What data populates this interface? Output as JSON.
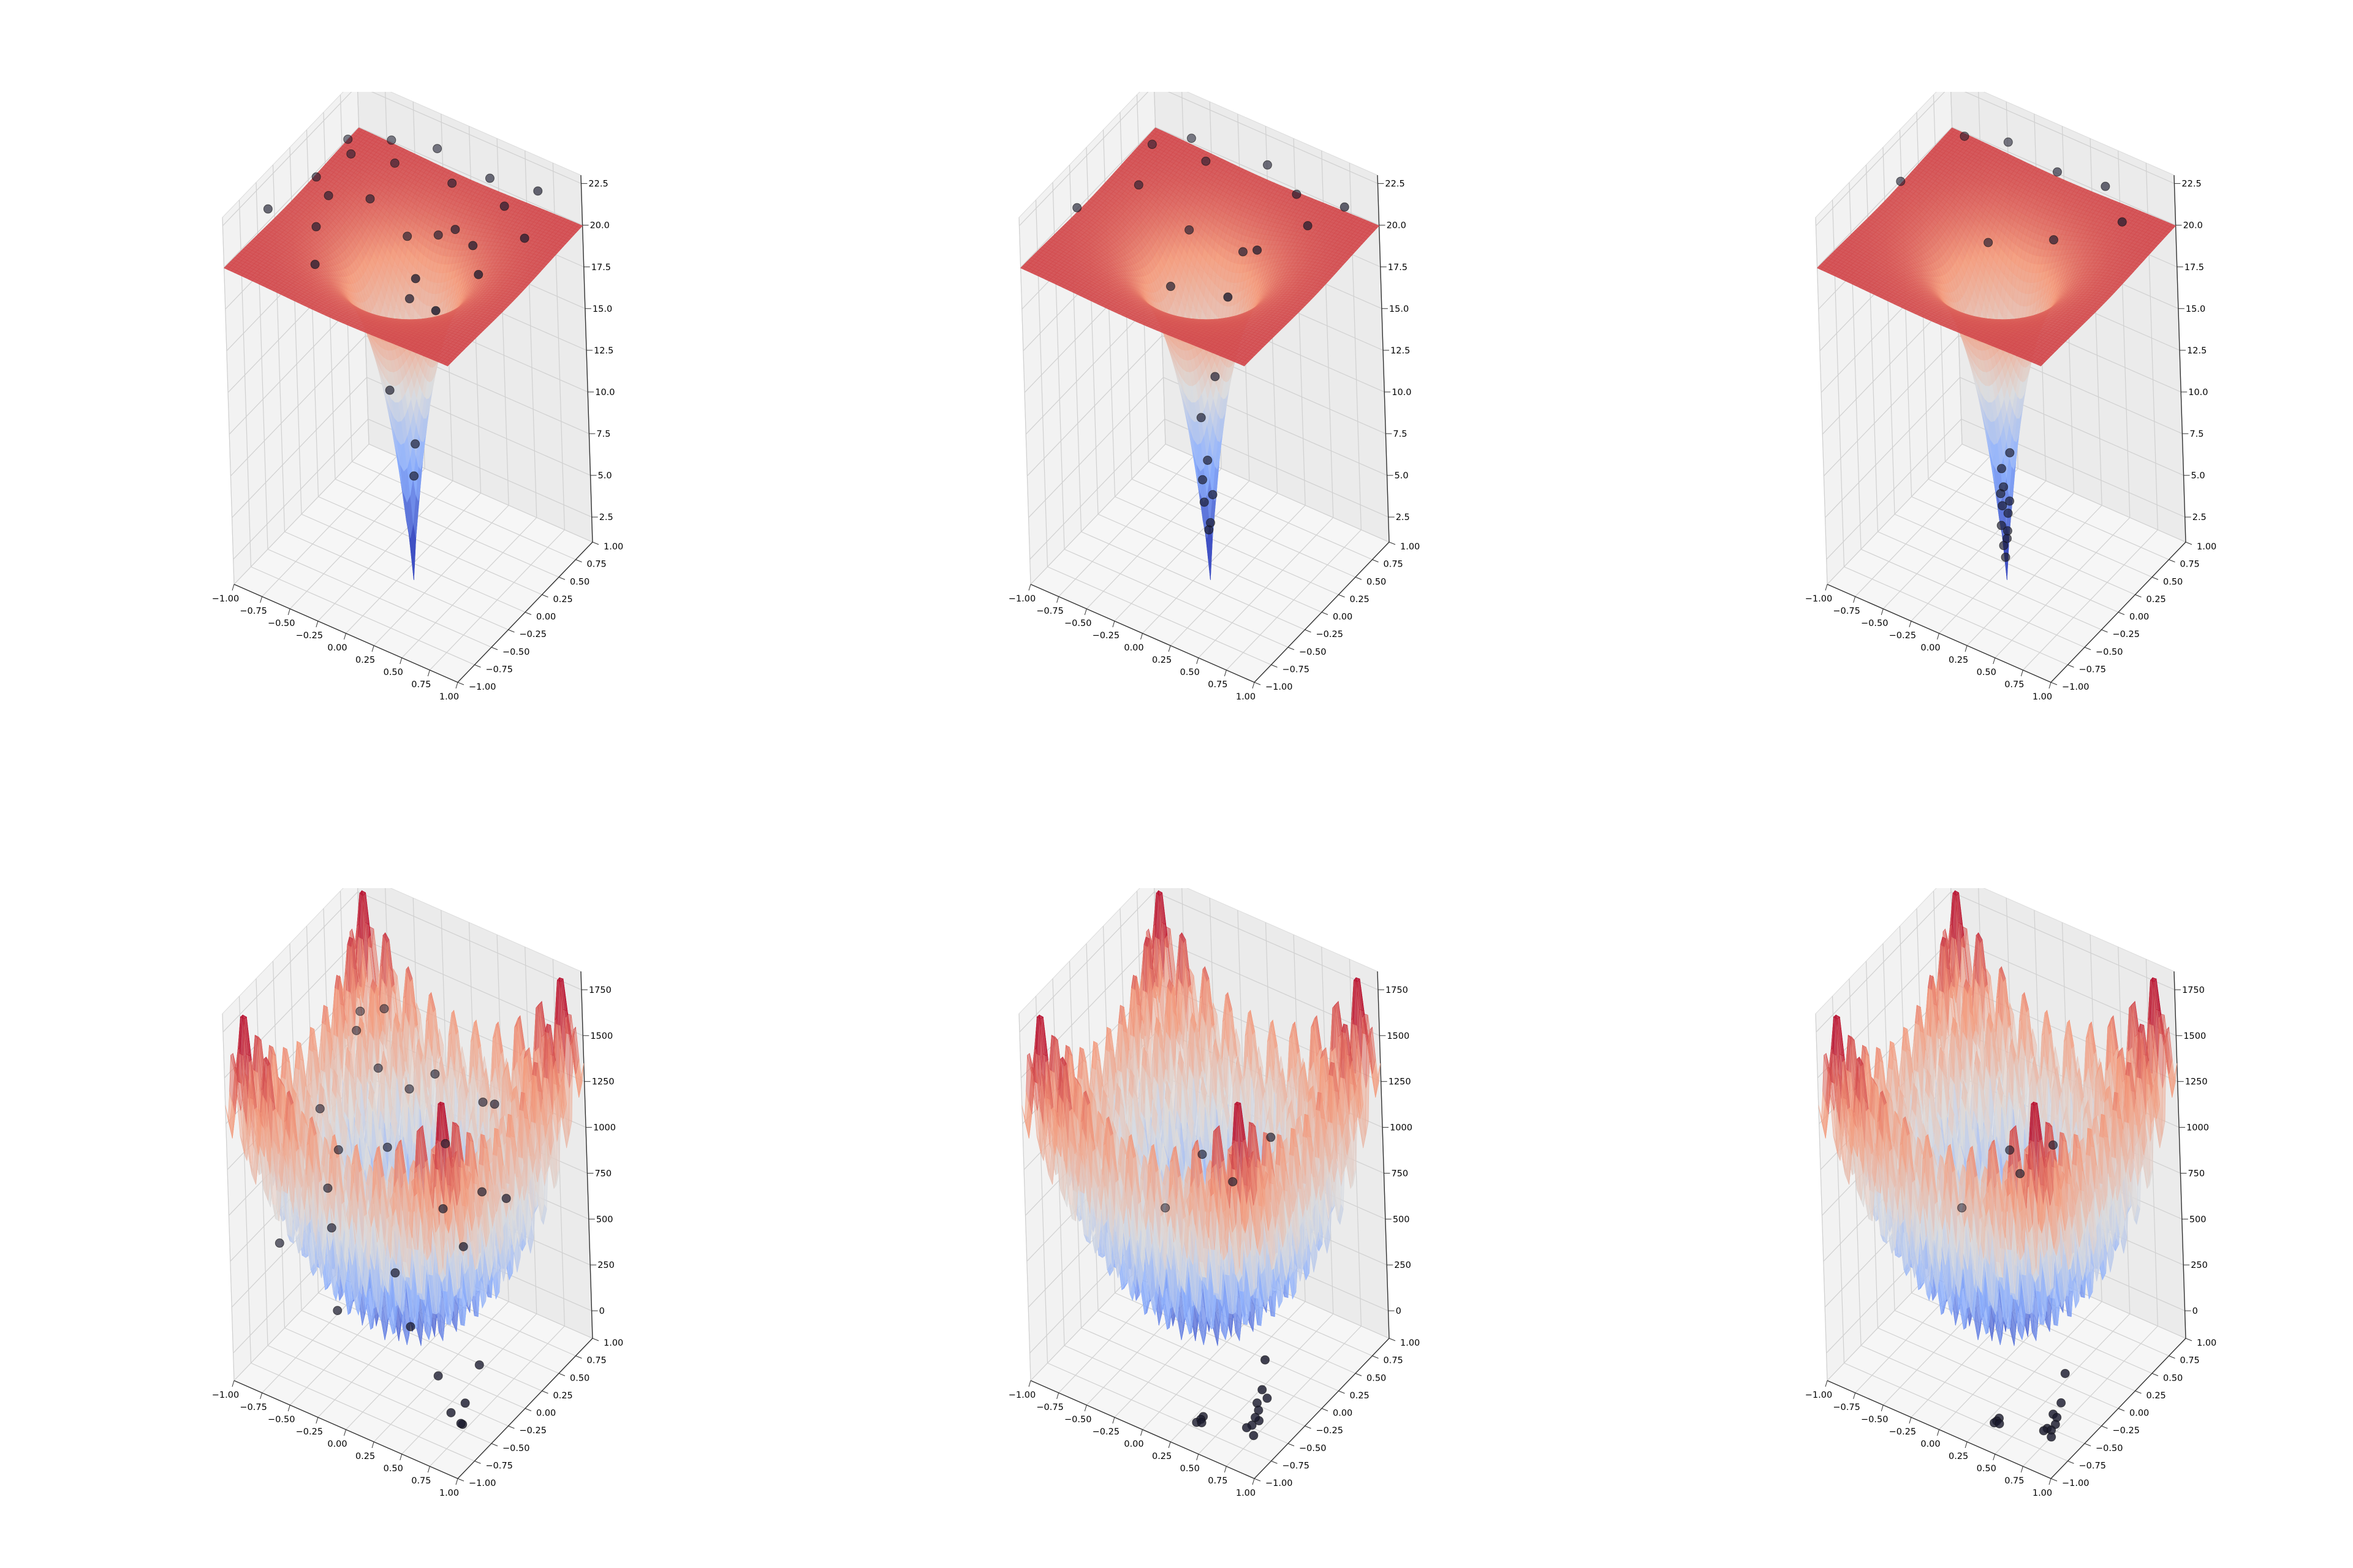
{
  "chart_data": [
    {
      "type": "surface3d",
      "row": 0,
      "col": 0,
      "surface": "ackley",
      "colormap": "coolwarm",
      "x_ticks": [
        "−1.00",
        "−0.75",
        "−0.50",
        "−0.25",
        "0.00",
        "0.25",
        "0.50",
        "0.75",
        "1.00"
      ],
      "y_ticks": [
        "−1.00",
        "−0.75",
        "−0.50",
        "−0.25",
        "0.00",
        "0.25",
        "0.50",
        "0.75",
        "1.00"
      ],
      "z_ticks": [
        "2.5",
        "5.0",
        "7.5",
        "10.0",
        "12.5",
        "15.0",
        "17.5",
        "20.0",
        "22.5"
      ],
      "xlim": [
        -1,
        1
      ],
      "ylim": [
        -1,
        1
      ],
      "zlim": [
        1,
        23
      ],
      "z_tick_values": [
        2.5,
        5,
        7.5,
        10,
        12.5,
        15,
        17.5,
        20,
        22.5
      ],
      "grid": true,
      "points": [
        [
          -0.85,
          0.6,
          21.4
        ],
        [
          -0.7,
          0.4,
          21.8
        ],
        [
          -0.55,
          0.75,
          21.6
        ],
        [
          -0.4,
          0.55,
          21.5
        ],
        [
          -0.2,
          0.85,
          21.7
        ],
        [
          0.05,
          0.65,
          21.2
        ],
        [
          0.3,
          0.8,
          21.6
        ],
        [
          0.55,
          0.6,
          21.5
        ],
        [
          0.7,
          0.85,
          21.8
        ],
        [
          0.85,
          0.4,
          21.3
        ],
        [
          -0.8,
          0.05,
          21.6
        ],
        [
          -0.6,
          -0.1,
          21.7
        ],
        [
          -0.35,
          0.1,
          21.4
        ],
        [
          0.35,
          0.2,
          21.2
        ],
        [
          0.6,
          0.05,
          21.6
        ],
        [
          0.8,
          -0.2,
          21.5
        ],
        [
          -0.9,
          -0.5,
          21.7
        ],
        [
          -0.5,
          -0.45,
          21.6
        ],
        [
          0.45,
          -0.55,
          21.7
        ],
        [
          0.1,
          0.35,
          19.5
        ],
        [
          -0.15,
          0.3,
          18.9
        ],
        [
          0.2,
          -0.25,
          18.5
        ],
        [
          -0.1,
          -0.1,
          11.5
        ],
        [
          0.02,
          0.05,
          8.0
        ],
        [
          0.05,
          -0.03,
          6.5
        ],
        [
          -0.3,
          -0.8,
          21.4
        ],
        [
          0.75,
          -0.75,
          21.5
        ]
      ]
    },
    {
      "type": "surface3d",
      "row": 0,
      "col": 1,
      "surface": "ackley",
      "colormap": "coolwarm",
      "x_ticks": [
        "−1.00",
        "−0.75",
        "−0.50",
        "−0.25",
        "0.00",
        "0.25",
        "0.50",
        "0.75",
        "1.00"
      ],
      "y_ticks": [
        "−1.00",
        "−0.75",
        "−0.50",
        "−0.25",
        "0.00",
        "0.25",
        "0.50",
        "0.75",
        "1.00"
      ],
      "z_ticks": [
        "2.5",
        "5.0",
        "7.5",
        "10.0",
        "12.5",
        "15.0",
        "17.5",
        "20.0",
        "22.5"
      ],
      "xlim": [
        -1,
        1
      ],
      "ylim": [
        -1,
        1
      ],
      "zlim": [
        1,
        23
      ],
      "z_tick_values": [
        2.5,
        5,
        7.5,
        10,
        12.5,
        15,
        17.5,
        20,
        22.5
      ],
      "grid": true,
      "points": [
        [
          -0.75,
          0.55,
          21.6
        ],
        [
          -0.55,
          0.8,
          21.5
        ],
        [
          -0.3,
          0.6,
          21.7
        ],
        [
          0.1,
          0.85,
          21.6
        ],
        [
          0.45,
          0.7,
          21.5
        ],
        [
          0.7,
          0.45,
          21.4
        ],
        [
          0.85,
          0.75,
          21.7
        ],
        [
          -0.6,
          0.1,
          21.5
        ],
        [
          0.55,
          -0.05,
          21.6
        ],
        [
          -0.25,
          0.25,
          19.2
        ],
        [
          0.2,
          0.3,
          19.0
        ],
        [
          -0.15,
          -0.2,
          18.0
        ],
        [
          0.05,
          0.08,
          12.0
        ],
        [
          -0.05,
          0.02,
          9.5
        ],
        [
          0.04,
          -0.05,
          7.5
        ],
        [
          -0.03,
          -0.02,
          6.0
        ],
        [
          0.02,
          0.04,
          5.0
        ],
        [
          -0.04,
          0.01,
          4.5
        ],
        [
          0.03,
          -0.02,
          3.6
        ],
        [
          0.0,
          0.0,
          3.0
        ],
        [
          -0.85,
          -0.4,
          21.5
        ],
        [
          0.65,
          -0.65,
          21.6
        ]
      ]
    },
    {
      "type": "surface3d",
      "row": 0,
      "col": 2,
      "surface": "ackley",
      "colormap": "coolwarm",
      "x_ticks": [
        "−1.00",
        "−0.75",
        "−0.50",
        "−0.25",
        "0.00",
        "0.25",
        "0.50",
        "0.75",
        "1.00"
      ],
      "y_ticks": [
        "−1.00",
        "−0.75",
        "−0.50",
        "−0.25",
        "0.00",
        "0.25",
        "0.50",
        "0.75",
        "1.00"
      ],
      "z_ticks": [
        "2.5",
        "5.0",
        "7.5",
        "10.0",
        "12.5",
        "15.0",
        "17.5",
        "20.0",
        "22.5"
      ],
      "xlim": [
        -1,
        1
      ],
      "ylim": [
        -1,
        1
      ],
      "zlim": [
        1,
        23
      ],
      "z_tick_values": [
        2.5,
        5,
        7.5,
        10,
        12.5,
        15,
        17.5,
        20,
        22.5
      ],
      "grid": true,
      "points": [
        [
          -0.7,
          0.7,
          21.6
        ],
        [
          -0.4,
          0.85,
          21.5
        ],
        [
          0.1,
          0.75,
          21.6
        ],
        [
          0.5,
          0.8,
          21.7
        ],
        [
          0.8,
          0.55,
          21.5
        ],
        [
          -0.85,
          0.0,
          21.4
        ],
        [
          0.3,
          0.35,
          19.8
        ],
        [
          -0.2,
          0.2,
          18.8
        ],
        [
          0.03,
          0.05,
          7.5
        ],
        [
          -0.03,
          0.02,
          6.5
        ],
        [
          0.02,
          -0.04,
          5.8
        ],
        [
          -0.02,
          -0.02,
          5.2
        ],
        [
          0.04,
          0.01,
          4.8
        ],
        [
          -0.04,
          0.03,
          4.2
        ],
        [
          0.01,
          0.03,
          3.9
        ],
        [
          -0.01,
          -0.04,
          3.4
        ],
        [
          0.02,
          0.0,
          3.0
        ],
        [
          0.0,
          0.02,
          2.4
        ],
        [
          -0.02,
          0.0,
          2.0
        ],
        [
          0.0,
          -0.01,
          1.4
        ]
      ]
    },
    {
      "type": "surface3d",
      "row": 1,
      "col": 0,
      "surface": "rastrigin",
      "colormap": "coolwarm",
      "x_ticks": [
        "−1.00",
        "−0.75",
        "−0.50",
        "−0.25",
        "0.00",
        "0.25",
        "0.50",
        "0.75",
        "1.00"
      ],
      "y_ticks": [
        "−1.00",
        "−0.75",
        "−0.50",
        "−0.25",
        "0.00",
        "0.25",
        "0.50",
        "0.75",
        "1.00"
      ],
      "z_ticks": [
        "0",
        "250",
        "500",
        "750",
        "1000",
        "1250",
        "1500",
        "1750"
      ],
      "xlim": [
        -1,
        1
      ],
      "ylim": [
        -1,
        1
      ],
      "zlim": [
        -150,
        1850
      ],
      "z_tick_values": [
        0,
        250,
        500,
        750,
        1000,
        1250,
        1500,
        1750
      ],
      "grid": true,
      "points": [
        [
          -0.95,
          0.9,
          1150
        ],
        [
          -0.8,
          0.6,
          1200
        ],
        [
          -0.9,
          0.2,
          900
        ],
        [
          -0.7,
          0.85,
          1250
        ],
        [
          -0.55,
          0.5,
          1100
        ],
        [
          -0.4,
          0.7,
          950
        ],
        [
          -0.6,
          -0.2,
          700
        ],
        [
          -0.3,
          0.2,
          850
        ],
        [
          -0.1,
          0.6,
          1150
        ],
        [
          0.1,
          0.4,
          900
        ],
        [
          0.25,
          0.1,
          700
        ],
        [
          0.4,
          0.65,
          1100
        ],
        [
          -0.8,
          -0.6,
          500
        ],
        [
          -0.45,
          -0.4,
          600
        ],
        [
          0.05,
          -0.3,
          450
        ],
        [
          0.3,
          -0.5,
          300
        ],
        [
          0.55,
          -0.1,
          650
        ],
        [
          0.7,
          0.3,
          800
        ],
        [
          0.85,
          -0.4,
          200
        ],
        [
          0.9,
          -0.7,
          120
        ],
        [
          0.95,
          -0.85,
          80
        ],
        [
          0.8,
          -0.75,
          60
        ],
        [
          0.6,
          -0.6,
          150
        ],
        [
          -0.2,
          -0.75,
          350
        ],
        [
          0.2,
          0.8,
          1000
        ],
        [
          -0.65,
          0.05,
          800
        ],
        [
          0.45,
          0.35,
          750
        ],
        [
          0.92,
          -0.78,
          40
        ]
      ]
    },
    {
      "type": "surface3d",
      "row": 1,
      "col": 1,
      "surface": "rastrigin",
      "colormap": "coolwarm",
      "x_ticks": [
        "−1.00",
        "−0.75",
        "−0.50",
        "−0.25",
        "0.00",
        "0.25",
        "0.50",
        "0.75",
        "1.00"
      ],
      "y_ticks": [
        "−1.00",
        "−0.75",
        "−0.50",
        "−0.25",
        "0.00",
        "0.25",
        "0.50",
        "0.75",
        "1.00"
      ],
      "z_ticks": [
        "0",
        "250",
        "500",
        "750",
        "1000",
        "1250",
        "1500",
        "1750"
      ],
      "xlim": [
        -1,
        1
      ],
      "ylim": [
        -1,
        1
      ],
      "zlim": [
        -150,
        1850
      ],
      "z_tick_values": [
        0,
        250,
        500,
        750,
        1000,
        1250,
        1500,
        1750
      ],
      "grid": true,
      "points": [
        [
          -0.98,
          0.98,
          40
        ],
        [
          -0.2,
          0.3,
          800
        ],
        [
          0.1,
          0.25,
          750
        ],
        [
          0.3,
          0.5,
          950
        ],
        [
          0.92,
          -0.78,
          60
        ],
        [
          0.9,
          -0.75,
          100
        ],
        [
          0.88,
          -0.82,
          40
        ],
        [
          0.95,
          -0.7,
          160
        ],
        [
          0.85,
          -0.85,
          30
        ],
        [
          0.93,
          -0.88,
          20
        ],
        [
          0.97,
          -0.8,
          250
        ],
        [
          0.98,
          -0.76,
          400
        ],
        [
          0.87,
          -0.72,
          120
        ],
        [
          0.5,
          -0.95,
          20
        ],
        [
          0.48,
          -0.98,
          10
        ],
        [
          0.52,
          -0.97,
          15
        ],
        [
          0.51,
          -0.93,
          30
        ],
        [
          0.9,
          -0.8,
          80
        ]
      ]
    },
    {
      "type": "surface3d",
      "row": 1,
      "col": 2,
      "surface": "rastrigin",
      "colormap": "coolwarm",
      "x_ticks": [
        "−1.00",
        "−0.75",
        "−0.50",
        "−0.25",
        "0.00",
        "0.25",
        "0.50",
        "0.75",
        "1.00"
      ],
      "y_ticks": [
        "−1.00",
        "−0.75",
        "−0.50",
        "−0.25",
        "0.00",
        "0.25",
        "0.50",
        "0.75",
        "1.00"
      ],
      "z_ticks": [
        "0",
        "250",
        "500",
        "750",
        "1000",
        "1250",
        "1500",
        "1750"
      ],
      "xlim": [
        -1,
        1
      ],
      "ylim": [
        -1,
        1
      ],
      "zlim": [
        -150,
        1850
      ],
      "z_tick_values": [
        0,
        250,
        500,
        750,
        1000,
        1250,
        1500,
        1750
      ],
      "grid": true,
      "points": [
        [
          -0.98,
          0.98,
          40
        ],
        [
          -0.1,
          0.3,
          850
        ],
        [
          0.05,
          0.2,
          800
        ],
        [
          0.2,
          0.45,
          900
        ],
        [
          0.93,
          -0.8,
          50
        ],
        [
          0.9,
          -0.78,
          90
        ],
        [
          0.88,
          -0.84,
          30
        ],
        [
          0.95,
          -0.74,
          150
        ],
        [
          0.86,
          -0.86,
          20
        ],
        [
          0.94,
          -0.88,
          15
        ],
        [
          0.97,
          -0.7,
          300
        ],
        [
          0.91,
          -0.83,
          25
        ],
        [
          0.5,
          -0.96,
          15
        ],
        [
          0.49,
          -0.98,
          10
        ],
        [
          0.53,
          -0.97,
          12
        ],
        [
          0.51,
          -0.94,
          25
        ],
        [
          0.92,
          -0.76,
          70
        ]
      ]
    }
  ]
}
